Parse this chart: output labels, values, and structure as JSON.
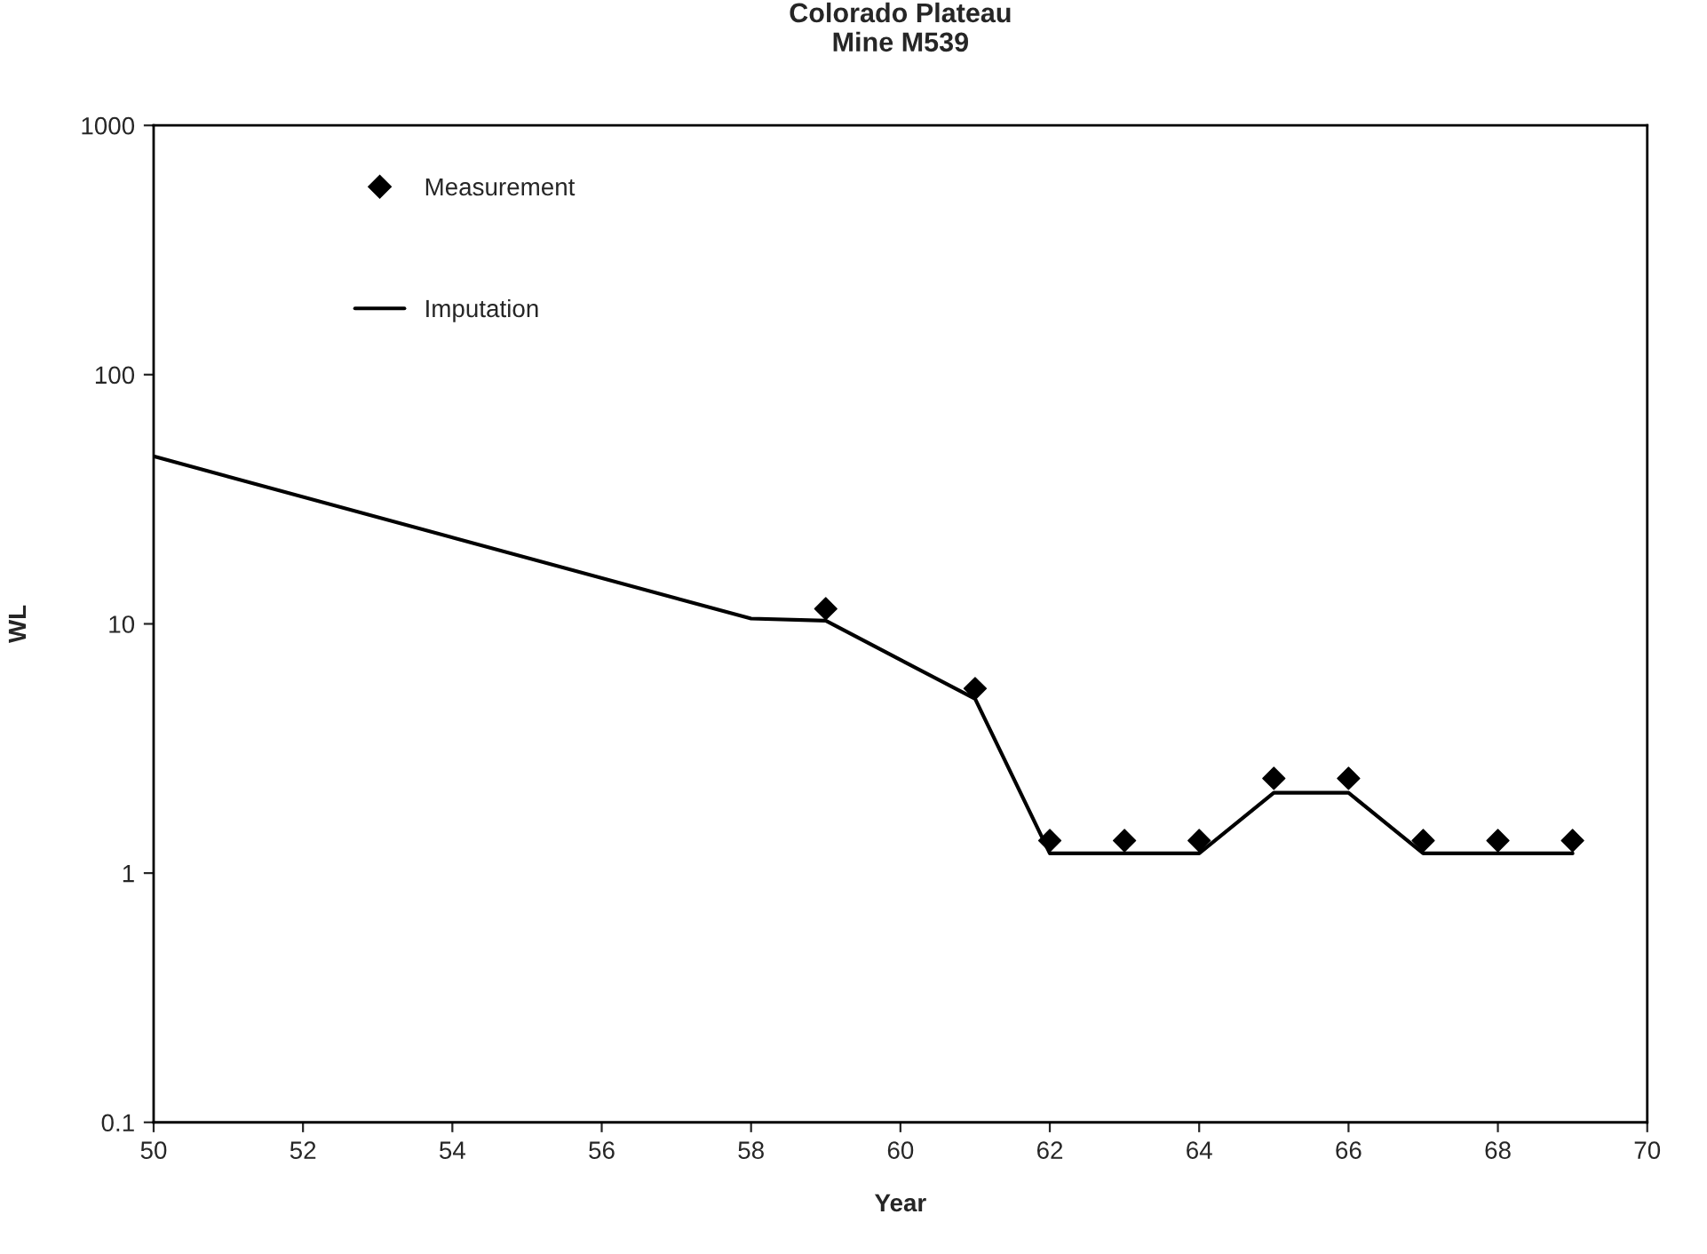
{
  "chart_data": {
    "type": "line",
    "title": "Colorado Plateau\nMine M539",
    "xlabel": "Year",
    "ylabel": "WL",
    "log": true,
    "xlim": [
      50,
      70
    ],
    "xticks": [
      50,
      52,
      54,
      56,
      58,
      60,
      62,
      64,
      66,
      68,
      70
    ],
    "ylim": [
      0.1,
      1000
    ],
    "yticks": [
      0.1,
      1,
      10,
      100,
      1000
    ],
    "grid": false,
    "legend": "top left",
    "series": [
      {
        "name": "Measurement",
        "type": "scatter",
        "marker": "diamond",
        "color": "#000000",
        "x": [
          59,
          61,
          62,
          63,
          64,
          65,
          66,
          67,
          68,
          69
        ],
        "values": [
          11.5,
          5.5,
          1.35,
          1.35,
          1.35,
          2.4,
          2.4,
          1.35,
          1.35,
          1.35
        ]
      },
      {
        "name": "Imputation",
        "marker": "none",
        "line_style": "solid",
        "color": "#000000",
        "x": [
          50,
          58,
          59,
          61,
          62,
          64,
          65,
          66,
          67,
          69
        ],
        "values": [
          47,
          10.5,
          10.3,
          5.0,
          1.2,
          1.2,
          2.1,
          2.1,
          1.2,
          1.2
        ]
      }
    ]
  }
}
